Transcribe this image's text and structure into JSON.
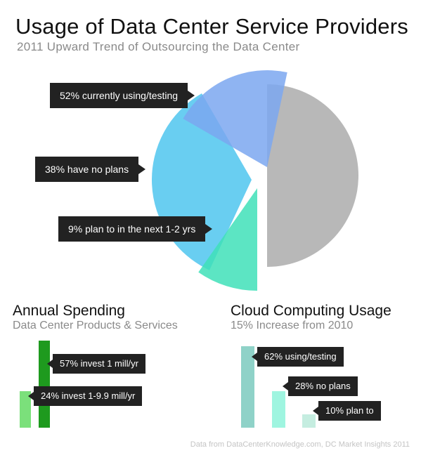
{
  "title": "Usage of Data Center Service Providers",
  "subtitle": "2011 Upward Trend of Outsourcing the Data Center",
  "footer": "Data from DataCenterKnowledge.com, DC Market Insights 2011",
  "chart_data": [
    {
      "type": "pie",
      "title": "Usage of Data Center Service Providers",
      "subtitle": "2011 Upward Trend of Outsourcing the Data Center",
      "categories": [
        "currently using/testing",
        "have no plans",
        "plan to in the next 1-2 yrs"
      ],
      "values": [
        52,
        38,
        9
      ],
      "labels": [
        "52% currently using/testing",
        "38% have no plans",
        "9% plan to in the next 1-2 yrs"
      ],
      "colors": [
        "#7ba7f0",
        "#4fc6ee",
        "#3fe0b8"
      ],
      "remainder_color": "#b8b8b8"
    },
    {
      "type": "bar",
      "title": "Annual Spending",
      "subtitle": "Data Center Products & Services",
      "categories": [
        "invest 1 mill/yr",
        "invest 1-9.9 mill/yr"
      ],
      "values": [
        57,
        24
      ],
      "labels": [
        "57% invest 1 mill/yr",
        "24% invest 1-9.9 mill/yr"
      ],
      "colors": [
        "#1e9a1e",
        "#7be07b"
      ]
    },
    {
      "type": "bar",
      "title": "Cloud Computing Usage",
      "subtitle": "15% Increase from 2010",
      "categories": [
        "using/testing",
        "no plans",
        "plan to"
      ],
      "values": [
        62,
        28,
        10
      ],
      "labels": [
        "62% using/testing",
        "28% no plans",
        "10% plan to"
      ],
      "colors": [
        "#8fd2c8",
        "#9ff5e0",
        "#c5ede0"
      ]
    }
  ]
}
